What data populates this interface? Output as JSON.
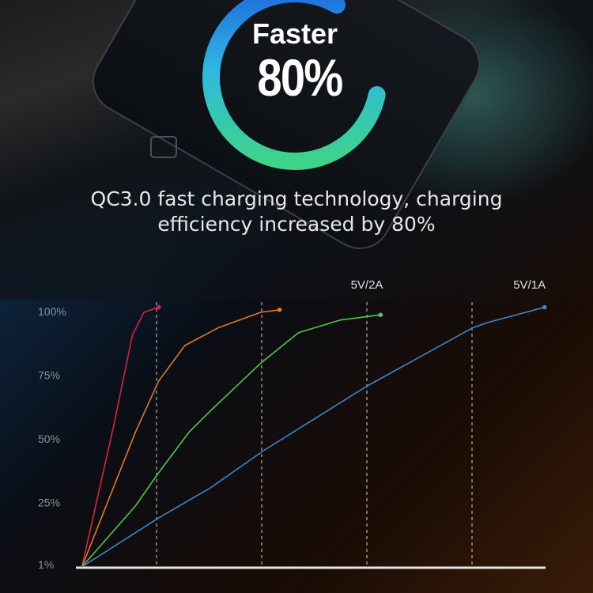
{
  "headline": {
    "line1": "Faster",
    "line2": "80%",
    "ring_percent": 80,
    "ring_colors": [
      "#1f6fe0",
      "#2fb8e0",
      "#3ed48a"
    ]
  },
  "subtitle": {
    "line1": "QC3.0 fast charging technology, charging",
    "line2": "efficiency increased by 80%"
  },
  "chart_data": {
    "type": "line",
    "title": "",
    "xlabel": "",
    "ylabel": "",
    "yticks": [
      "1%",
      "25%",
      "50%",
      "75%",
      "100%"
    ],
    "ytick_values": [
      1,
      25,
      50,
      75,
      100
    ],
    "ylim": [
      1,
      105
    ],
    "xlim": [
      0,
      4.7
    ],
    "x_gridlines": [
      1,
      2,
      3,
      4
    ],
    "grid": "vertical dashed",
    "labels": [
      {
        "text": "5V/2A",
        "x": 3,
        "y": 111
      },
      {
        "text": "5V/1A",
        "x": 4.7,
        "y": 111
      }
    ],
    "series": [
      {
        "color": "#d8233f",
        "x": [
          0.29,
          0.59,
          0.77,
          0.88,
          1.02
        ],
        "y": [
          1,
          56,
          92,
          101,
          103
        ]
      },
      {
        "color": "#e07a22",
        "x": [
          0.29,
          0.8,
          1.02,
          1.27,
          1.59,
          1.99,
          2.17
        ],
        "y": [
          1,
          54,
          74,
          88,
          95,
          101,
          102
        ]
      },
      {
        "color": "#4cc84a",
        "x": [
          0.29,
          0.8,
          1.02,
          1.31,
          1.53,
          1.99,
          2.35,
          2.75,
          3.13
        ],
        "y": [
          1,
          25,
          38,
          54,
          63,
          81,
          93,
          98,
          100
        ]
      },
      {
        "color": "#3f86c8",
        "x": [
          0.29,
          1.01,
          1.51,
          2.03,
          3.0,
          4.01,
          4.15,
          4.69
        ],
        "y": [
          1,
          20,
          32,
          47,
          72,
          95,
          97,
          103
        ]
      }
    ]
  }
}
